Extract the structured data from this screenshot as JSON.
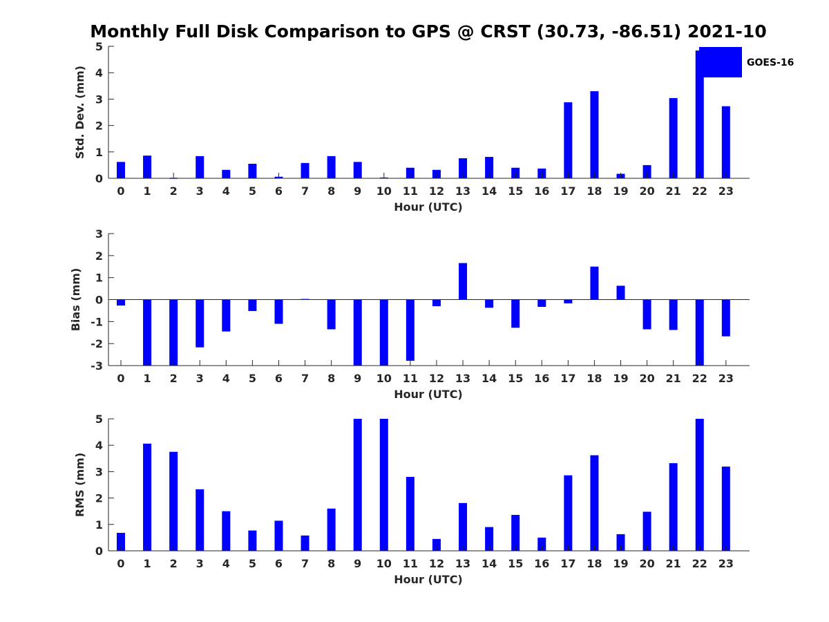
{
  "title": "Monthly Full Disk Comparison to GPS @ CRST (30.73, -86.51) 2021-10",
  "colors": {
    "bar": "#0000ff",
    "axis": "#262626",
    "background": "#ffffff"
  },
  "legend": {
    "label": "GOES-16",
    "placement": "top-right"
  },
  "chart_data": [
    {
      "type": "bar",
      "title": "Monthly Full Disk Comparison to GPS @ CRST (30.73, -86.51) 2021-10",
      "xlabel": "Hour (UTC)",
      "ylabel": "Std. Dev. (mm)",
      "ylim": [
        0,
        5
      ],
      "yticks": [
        0,
        1,
        2,
        3,
        4,
        5
      ],
      "categories": [
        "0",
        "1",
        "2",
        "3",
        "4",
        "5",
        "6",
        "7",
        "8",
        "9",
        "10",
        "11",
        "12",
        "13",
        "14",
        "15",
        "16",
        "17",
        "18",
        "19",
        "20",
        "21",
        "22",
        "23"
      ],
      "series": [
        {
          "name": "GOES-16",
          "values": [
            0.62,
            0.86,
            0.0,
            0.84,
            0.32,
            0.55,
            0.06,
            0.58,
            0.84,
            0.62,
            0.03,
            0.4,
            0.32,
            0.76,
            0.81,
            0.4,
            0.37,
            2.88,
            3.3,
            0.17,
            0.5,
            3.04,
            4.84,
            2.73
          ]
        }
      ],
      "legend": "top-right"
    },
    {
      "type": "bar",
      "xlabel": "Hour (UTC)",
      "ylabel": "Bias (mm)",
      "ylim": [
        -3,
        3
      ],
      "yticks": [
        -3,
        -2,
        -1,
        0,
        1,
        2,
        3
      ],
      "categories": [
        "0",
        "1",
        "2",
        "3",
        "4",
        "5",
        "6",
        "7",
        "8",
        "9",
        "10",
        "11",
        "12",
        "13",
        "14",
        "15",
        "16",
        "17",
        "18",
        "19",
        "20",
        "21",
        "22",
        "23"
      ],
      "series": [
        {
          "values": [
            -0.27,
            -3.0,
            -3.0,
            -2.17,
            -1.45,
            -0.52,
            -1.1,
            0.03,
            -1.35,
            -3.0,
            -3.0,
            -2.78,
            -0.3,
            1.66,
            -0.37,
            -1.28,
            -0.33,
            -0.17,
            1.5,
            0.63,
            -1.35,
            -1.38,
            -3.0,
            -1.67
          ]
        }
      ]
    },
    {
      "type": "bar",
      "xlabel": "Hour (UTC)",
      "ylabel": "RMS (mm)",
      "ylim": [
        0,
        5
      ],
      "yticks": [
        0,
        1,
        2,
        3,
        4,
        5
      ],
      "categories": [
        "0",
        "1",
        "2",
        "3",
        "4",
        "5",
        "6",
        "7",
        "8",
        "9",
        "10",
        "11",
        "12",
        "13",
        "14",
        "15",
        "16",
        "17",
        "18",
        "19",
        "20",
        "21",
        "22",
        "23"
      ],
      "series": [
        {
          "values": [
            0.68,
            4.06,
            3.75,
            2.33,
            1.5,
            0.77,
            1.14,
            0.58,
            1.6,
            5.0,
            5.0,
            2.8,
            0.45,
            1.81,
            0.9,
            1.36,
            0.5,
            2.86,
            3.62,
            0.63,
            1.48,
            3.32,
            5.0,
            3.19
          ]
        }
      ]
    }
  ]
}
